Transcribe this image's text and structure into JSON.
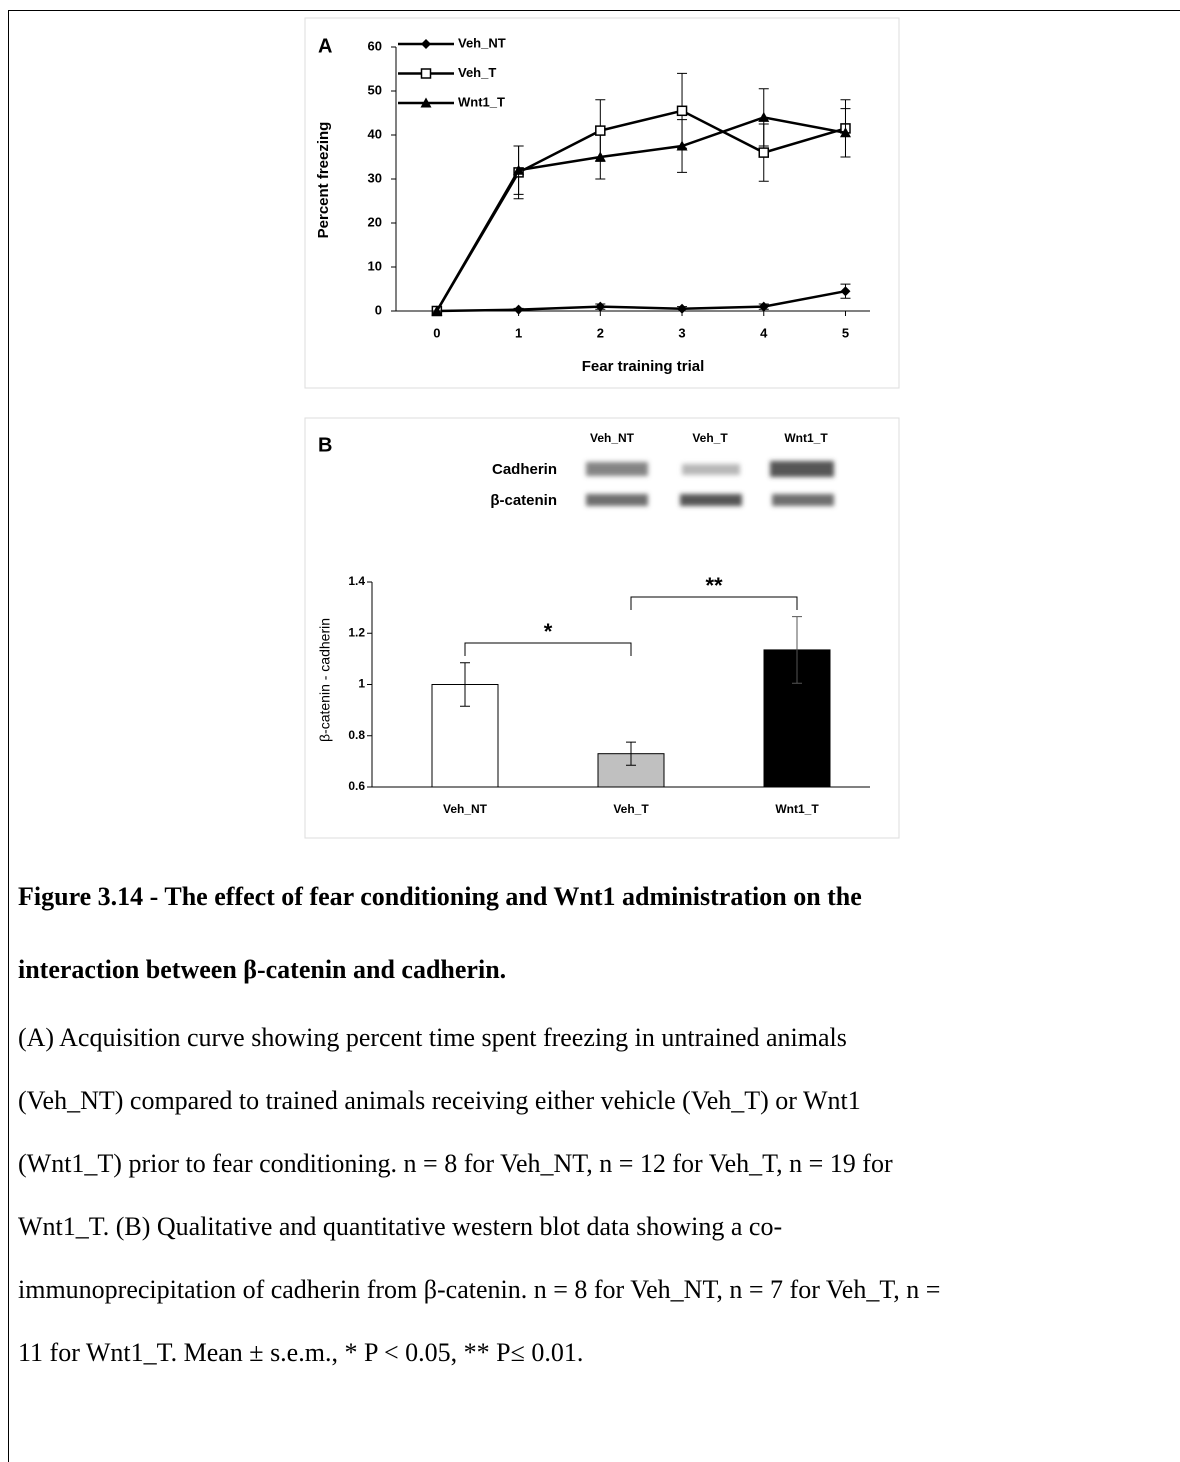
{
  "chart_data": [
    {
      "type": "line",
      "panel": "A",
      "x_label": "Fear training trial",
      "y_label": "Percent freezing",
      "x": [
        0,
        1,
        2,
        3,
        4,
        5
      ],
      "xlim": [
        -0.5,
        5.3
      ],
      "xticks": [
        0,
        1,
        2,
        3,
        4,
        5
      ],
      "ylim": [
        0,
        60
      ],
      "yticks": [
        0,
        10,
        20,
        30,
        40,
        50,
        60
      ],
      "legend": "upper left",
      "series": [
        {
          "name": "Veh_NT",
          "color": "#000000",
          "marker": "diamond",
          "values": [
            0,
            0.3,
            1,
            0.5,
            1,
            4.5
          ],
          "errors": [
            0,
            0.3,
            0.6,
            0.5,
            0.6,
            1.6
          ]
        },
        {
          "name": "Veh_T",
          "color": "#000000",
          "marker": "square",
          "values": [
            0,
            31.5,
            41,
            45.5,
            36,
            41.5
          ],
          "errors": [
            0,
            6,
            7,
            8.5,
            6.5,
            6.5
          ]
        },
        {
          "name": "Wnt1_T",
          "color": "#000000",
          "marker": "triangle",
          "values": [
            0,
            32,
            35,
            37.5,
            44,
            40.5
          ],
          "errors": [
            0,
            5.5,
            5,
            6,
            6.5,
            5.5
          ]
        }
      ]
    },
    {
      "type": "bar",
      "panel": "B",
      "y_label": "β-catenin - cadherin",
      "categories": [
        "Veh_NT",
        "Veh_T",
        "Wnt1_T"
      ],
      "values": [
        1,
        0.73,
        1.135
      ],
      "errors": [
        0.085,
        0.045,
        0.13
      ],
      "colors": [
        "#ffffff",
        "#c0c0c0",
        "#000000"
      ],
      "ylim": [
        0.6,
        1.4
      ],
      "yticks": [
        0.6,
        0.8,
        1,
        1.2,
        1.4
      ],
      "annotations": [
        {
          "text": "*",
          "from": 0,
          "to": 1
        },
        {
          "text": "**",
          "from": 1,
          "to": 2
        }
      ],
      "blot": {
        "lanes": [
          "Veh_NT",
          "Veh_T",
          "Wnt1_T"
        ],
        "rows": [
          "Cadherin",
          "β-catenin"
        ]
      }
    }
  ],
  "caption": {
    "title_lines": [
      "Figure 3.14 - The effect of fear conditioning and Wnt1 administration on the",
      "interaction between β-catenin and cadherin."
    ],
    "body_lines": [
      "(A) Acquisition curve showing percent time spent freezing in untrained animals",
      "(Veh_NT) compared to trained animals receiving either vehicle (Veh_T) or Wnt1",
      "(Wnt1_T) prior to fear conditioning. n = 8 for Veh_NT, n = 12 for Veh_T, n = 19 for",
      "Wnt1_T. (B) Qualitative and quantitative western blot data showing a co-",
      "immunoprecipitation of cadherin from β-catenin. n = 8 for Veh_NT, n = 7 for Veh_T, n =",
      "11 for Wnt1_T. Mean ± s.e.m., * P < 0.05, ** P≤ 0.01."
    ]
  }
}
